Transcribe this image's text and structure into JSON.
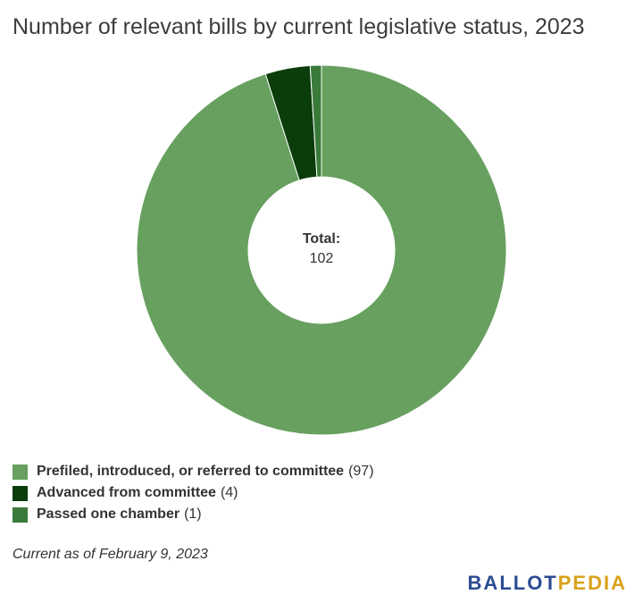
{
  "title": "Number of relevant bills by current legislative status, 2023",
  "chart_data": {
    "type": "pie",
    "donut": true,
    "categories": [
      "Prefiled, introduced, or referred to committee",
      "Advanced from committee",
      "Passed one chamber"
    ],
    "values": [
      97,
      4,
      1
    ],
    "colors": [
      "#67a05f",
      "#0b3d0b",
      "#3a7a3a"
    ],
    "center_label": "Total:",
    "center_value": "102",
    "legend_placement": "bottom-left"
  },
  "legend": [
    {
      "name": "Prefiled, introduced, or referred to committee",
      "count": "(97)",
      "color": "#67a05f"
    },
    {
      "name": "Advanced from committee",
      "count": "(4)",
      "color": "#0b3d0b"
    },
    {
      "name": "Passed one chamber",
      "count": "(1)",
      "color": "#3a7a3a"
    }
  ],
  "note": "Current as of February 9, 2023",
  "logo": {
    "part1": "BALLOT",
    "part2": "PEDIA"
  }
}
